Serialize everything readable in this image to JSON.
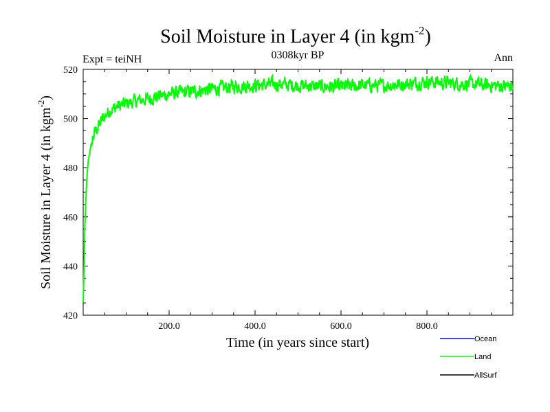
{
  "chart_data": {
    "type": "line",
    "title_main": "Soil Moisture in Layer 4 (in kgm",
    "title_sup": "-2",
    "title_close": ")",
    "subtitle": "0308kyr BP",
    "left_label": "Expt = teiNH",
    "right_label": "Ann",
    "xlabel": "Time (in years since start)",
    "ylabel_main": "Soil Moisture in Layer 4 (in kgm",
    "ylabel_sup": "-2",
    "ylabel_close": ")",
    "xlim": [
      0,
      1000
    ],
    "ylim": [
      420,
      520
    ],
    "x_ticks": [
      200,
      400,
      600,
      800
    ],
    "x_tick_labels": [
      "200.0",
      "400.0",
      "600.0",
      "800.0"
    ],
    "y_ticks": [
      420,
      440,
      460,
      480,
      500,
      520
    ],
    "y_tick_labels": [
      "420",
      "440",
      "460",
      "480",
      "500",
      "520"
    ],
    "series": [
      {
        "name": "Land",
        "color": "#00ff00",
        "points": [
          [
            0,
            425
          ],
          [
            2,
            440
          ],
          [
            4,
            456
          ],
          [
            6,
            466
          ],
          [
            8,
            474
          ],
          [
            10,
            479
          ],
          [
            12,
            483
          ],
          [
            15,
            486
          ],
          [
            18,
            489
          ],
          [
            22,
            492
          ],
          [
            26,
            494
          ],
          [
            30,
            495
          ],
          [
            35,
            497
          ],
          [
            40,
            498
          ],
          [
            45,
            500
          ],
          [
            50,
            501
          ],
          [
            55,
            502
          ],
          [
            60,
            503
          ],
          [
            70,
            504
          ],
          [
            80,
            505
          ],
          [
            100,
            506
          ],
          [
            120,
            507
          ],
          [
            150,
            508
          ],
          [
            200,
            510
          ],
          [
            250,
            511
          ],
          [
            300,
            512
          ],
          [
            350,
            513
          ],
          [
            400,
            513.5
          ],
          [
            450,
            514
          ],
          [
            500,
            513.5
          ],
          [
            550,
            513
          ],
          [
            600,
            513
          ],
          [
            650,
            513.5
          ],
          [
            700,
            513.5
          ],
          [
            750,
            514
          ],
          [
            800,
            515
          ],
          [
            850,
            514.5
          ],
          [
            900,
            514
          ],
          [
            950,
            513.5
          ],
          [
            1000,
            513
          ]
        ],
        "noise_amplitude": 2.5,
        "legend_label": "Land"
      },
      {
        "name": "Ocean",
        "color": "#0000ff",
        "legend_label": "Ocean"
      },
      {
        "name": "AllSurf",
        "color": "#000000",
        "legend_label": "AllSurf"
      }
    ],
    "legend_position": "bottom-right"
  }
}
